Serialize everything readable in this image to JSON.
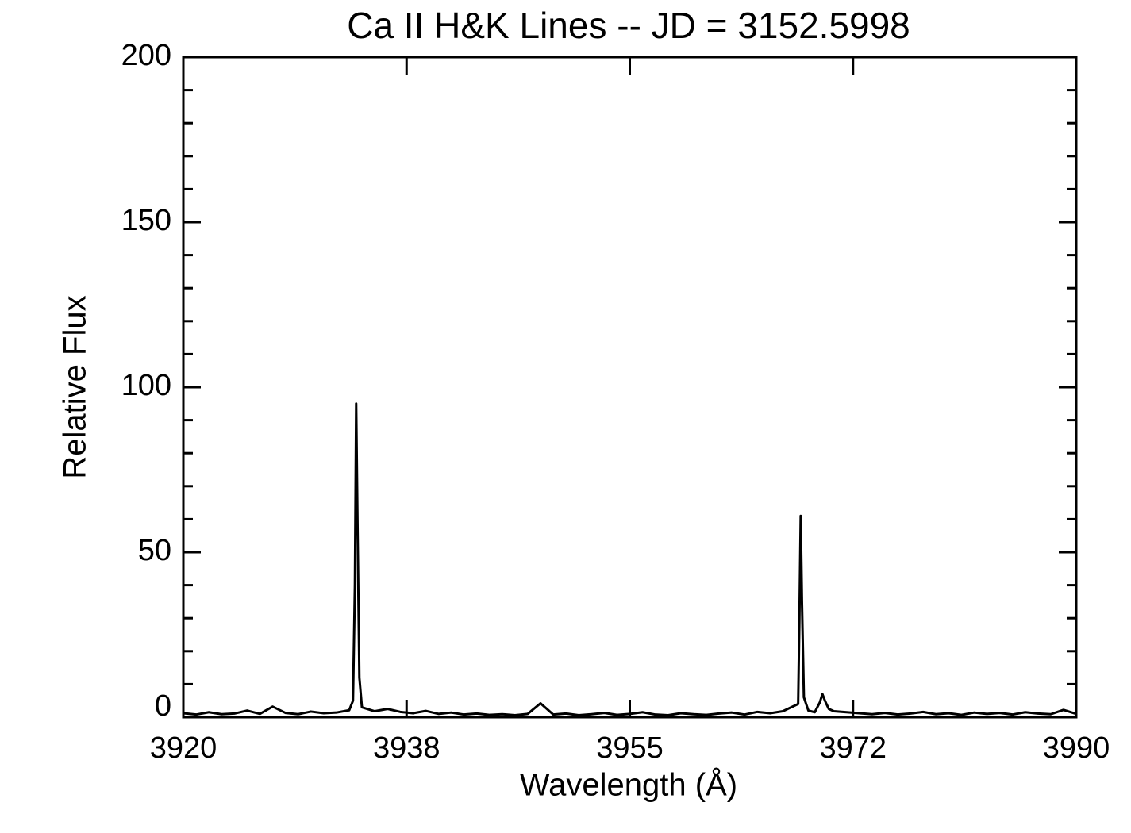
{
  "chart_data": {
    "type": "line",
    "title": "Ca II H&K Lines -- JD = 3152.5998",
    "xlabel": "Wavelength (Å)",
    "ylabel": "Relative Flux",
    "color": "#000000",
    "xlim": [
      3920,
      3990
    ],
    "ylim": [
      0,
      200
    ],
    "xticks": [
      3920,
      {
        "value": 3937.5,
        "label": "3938"
      },
      3955,
      {
        "value": 3972.5,
        "label": "3972"
      },
      3990
    ],
    "yticks": [
      0,
      50,
      100,
      150,
      200
    ],
    "yminorticks": [
      10,
      20,
      30,
      40,
      60,
      70,
      80,
      90,
      110,
      120,
      130,
      140,
      160,
      170,
      180,
      190
    ],
    "x": [
      3920,
      3921,
      3922,
      3923,
      3924,
      3925,
      3926,
      3927,
      3928,
      3929,
      3930,
      3931,
      3932,
      3933,
      3933.3,
      3933.45,
      3933.55,
      3933.65,
      3933.8,
      3934,
      3935,
      3936,
      3937,
      3938,
      3939,
      3940,
      3941,
      3942,
      3943,
      3944,
      3945,
      3946,
      3947,
      3948,
      3949,
      3950,
      3951,
      3952,
      3953,
      3954,
      3955,
      3956,
      3957,
      3958,
      3959,
      3960,
      3961,
      3962,
      3963,
      3964,
      3965,
      3966,
      3967,
      3968.2,
      3968.3,
      3968.4,
      3968.5,
      3968.65,
      3969,
      3969.5,
      3969.9,
      3970.1,
      3970.3,
      3970.6,
      3971,
      3972,
      3973,
      3974,
      3975,
      3976,
      3977,
      3978,
      3979,
      3980,
      3981,
      3982,
      3983,
      3984,
      3985,
      3986,
      3987,
      3988,
      3989,
      3990
    ],
    "values": [
      1.2,
      0.8,
      1.5,
      0.9,
      1.1,
      2.0,
      1.0,
      3.2,
      1.3,
      0.9,
      1.7,
      1.2,
      1.4,
      2.1,
      5,
      40,
      95,
      60,
      12,
      3,
      1.8,
      2.5,
      1.6,
      1.2,
      1.9,
      1.0,
      1.4,
      0.8,
      1.1,
      0.7,
      0.9,
      0.6,
      1.0,
      4.2,
      0.8,
      1.1,
      0.6,
      0.9,
      1.3,
      0.7,
      1.0,
      1.5,
      0.8,
      0.6,
      1.2,
      0.9,
      0.7,
      1.1,
      1.4,
      0.8,
      1.6,
      1.2,
      1.8,
      4,
      30,
      61,
      35,
      6,
      2,
      1.5,
      4.5,
      7,
      5,
      2.5,
      1.8,
      1.5,
      1.2,
      0.9,
      1.3,
      0.8,
      1.1,
      1.6,
      0.9,
      1.2,
      0.7,
      1.4,
      1.0,
      1.3,
      0.8,
      1.5,
      1.1,
      0.9,
      2.2,
      1.0
    ]
  }
}
